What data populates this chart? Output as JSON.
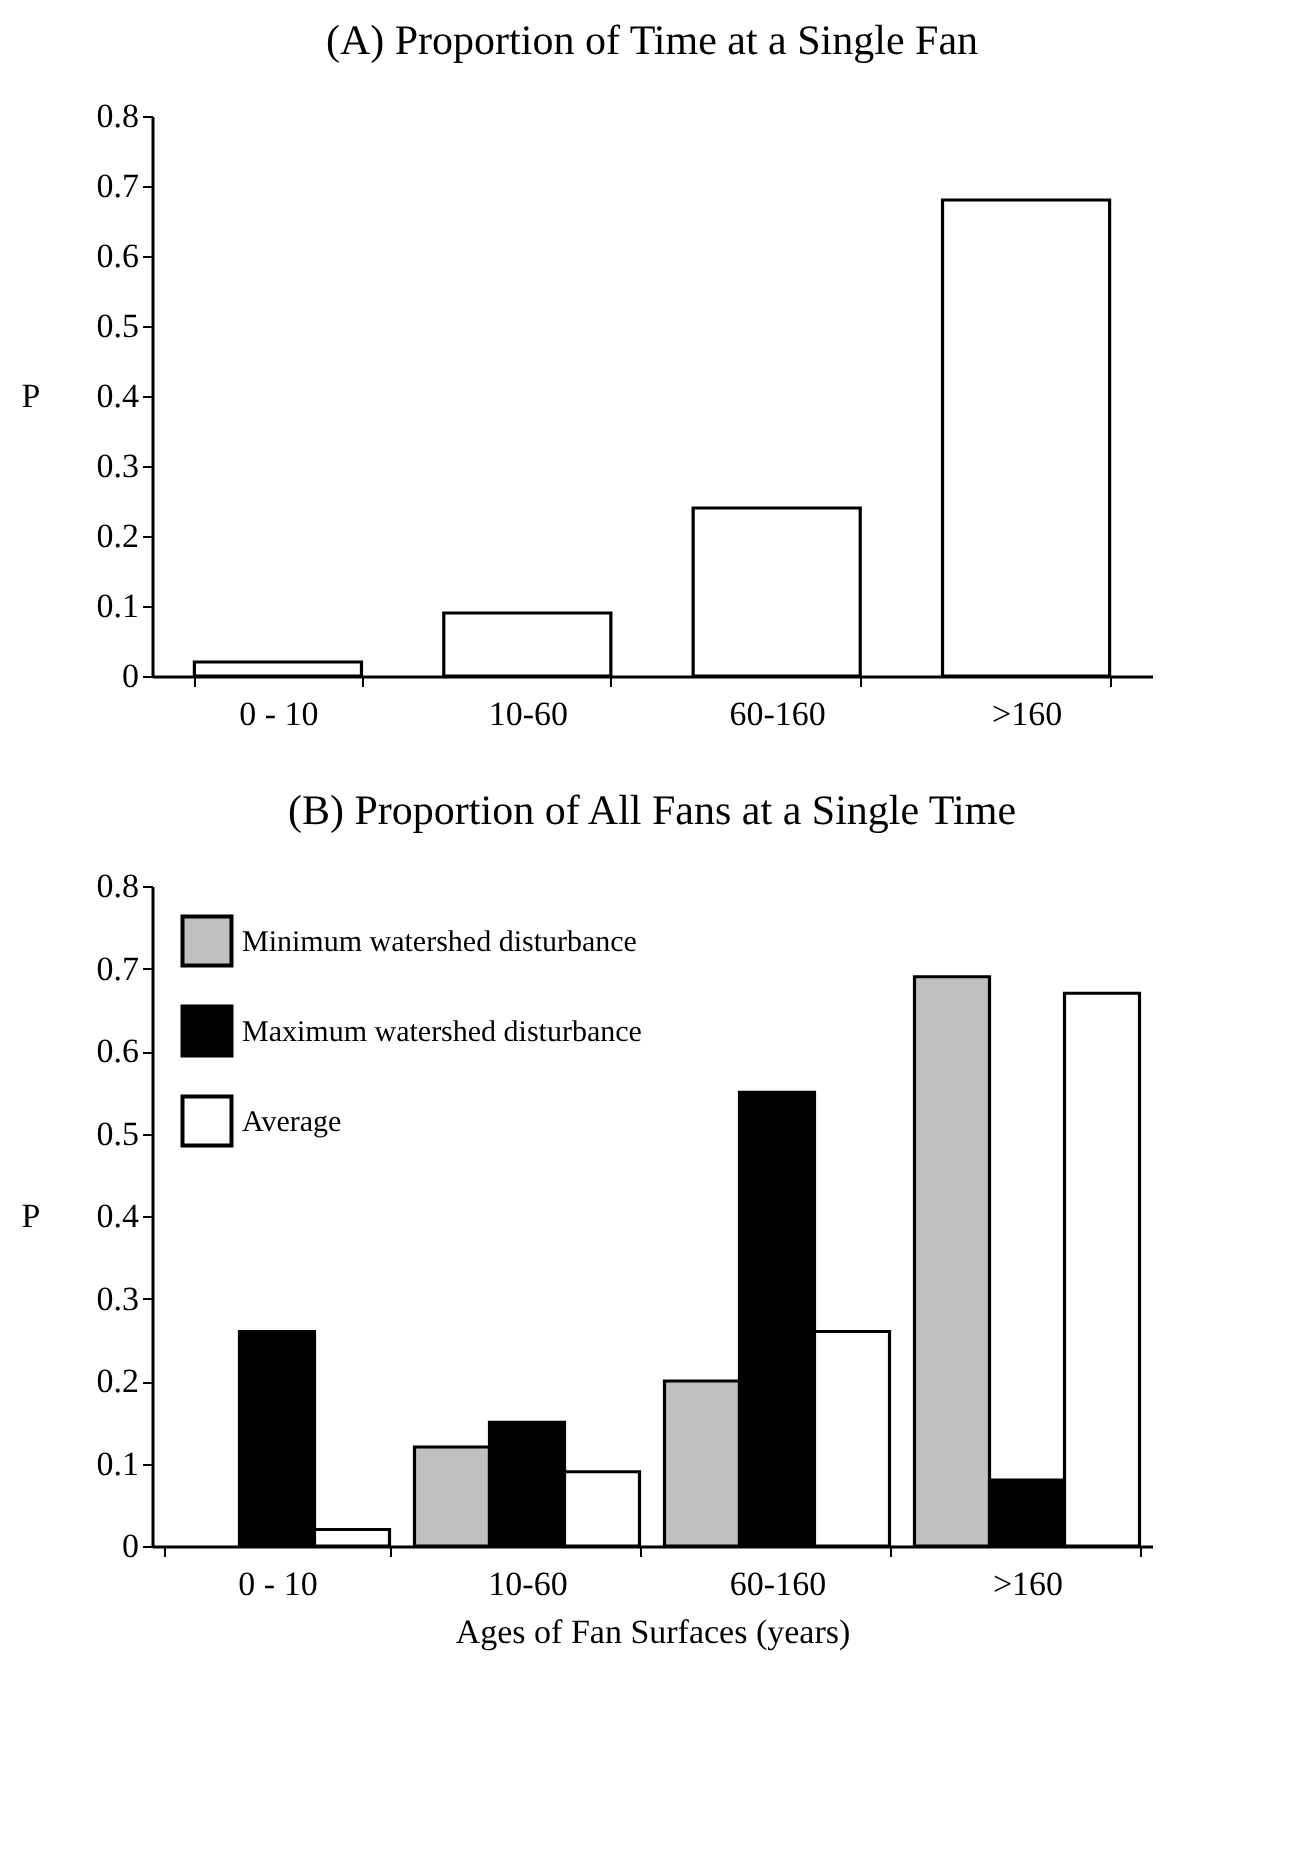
{
  "chart_data": [
    {
      "type": "bar",
      "title": "(A) Proportion of Time at a Single Fan",
      "ylabel": "P",
      "categories": [
        "0 - 10",
        "10-60",
        "60-160",
        ">160"
      ],
      "values": [
        0.02,
        0.09,
        0.24,
        0.68
      ],
      "color": "#ffffff",
      "ylim": [
        0,
        0.8
      ],
      "yticks": [
        0,
        0.1,
        0.2,
        0.3,
        0.4,
        0.5,
        0.6,
        0.7,
        0.8
      ]
    },
    {
      "type": "bar",
      "title": "(B) Proportion of All Fans at a Single Time",
      "ylabel": "P",
      "xlabel": "Ages of Fan Surfaces (years)",
      "categories": [
        "0 - 10",
        "10-60",
        "60-160",
        ">160"
      ],
      "series": [
        {
          "name": "Minimum watershed disturbance",
          "color": "#c0c0c0",
          "values": [
            0,
            0.12,
            0.2,
            0.69
          ]
        },
        {
          "name": "Maximum watershed disturbance",
          "color": "#000000",
          "values": [
            0.26,
            0.15,
            0.55,
            0.08
          ]
        },
        {
          "name": "Average",
          "color": "#ffffff",
          "values": [
            0.02,
            0.09,
            0.26,
            0.67
          ]
        }
      ],
      "ylim": [
        0,
        0.8
      ],
      "yticks": [
        0,
        0.1,
        0.2,
        0.3,
        0.4,
        0.5,
        0.6,
        0.7,
        0.8
      ],
      "legend": "top left"
    }
  ]
}
